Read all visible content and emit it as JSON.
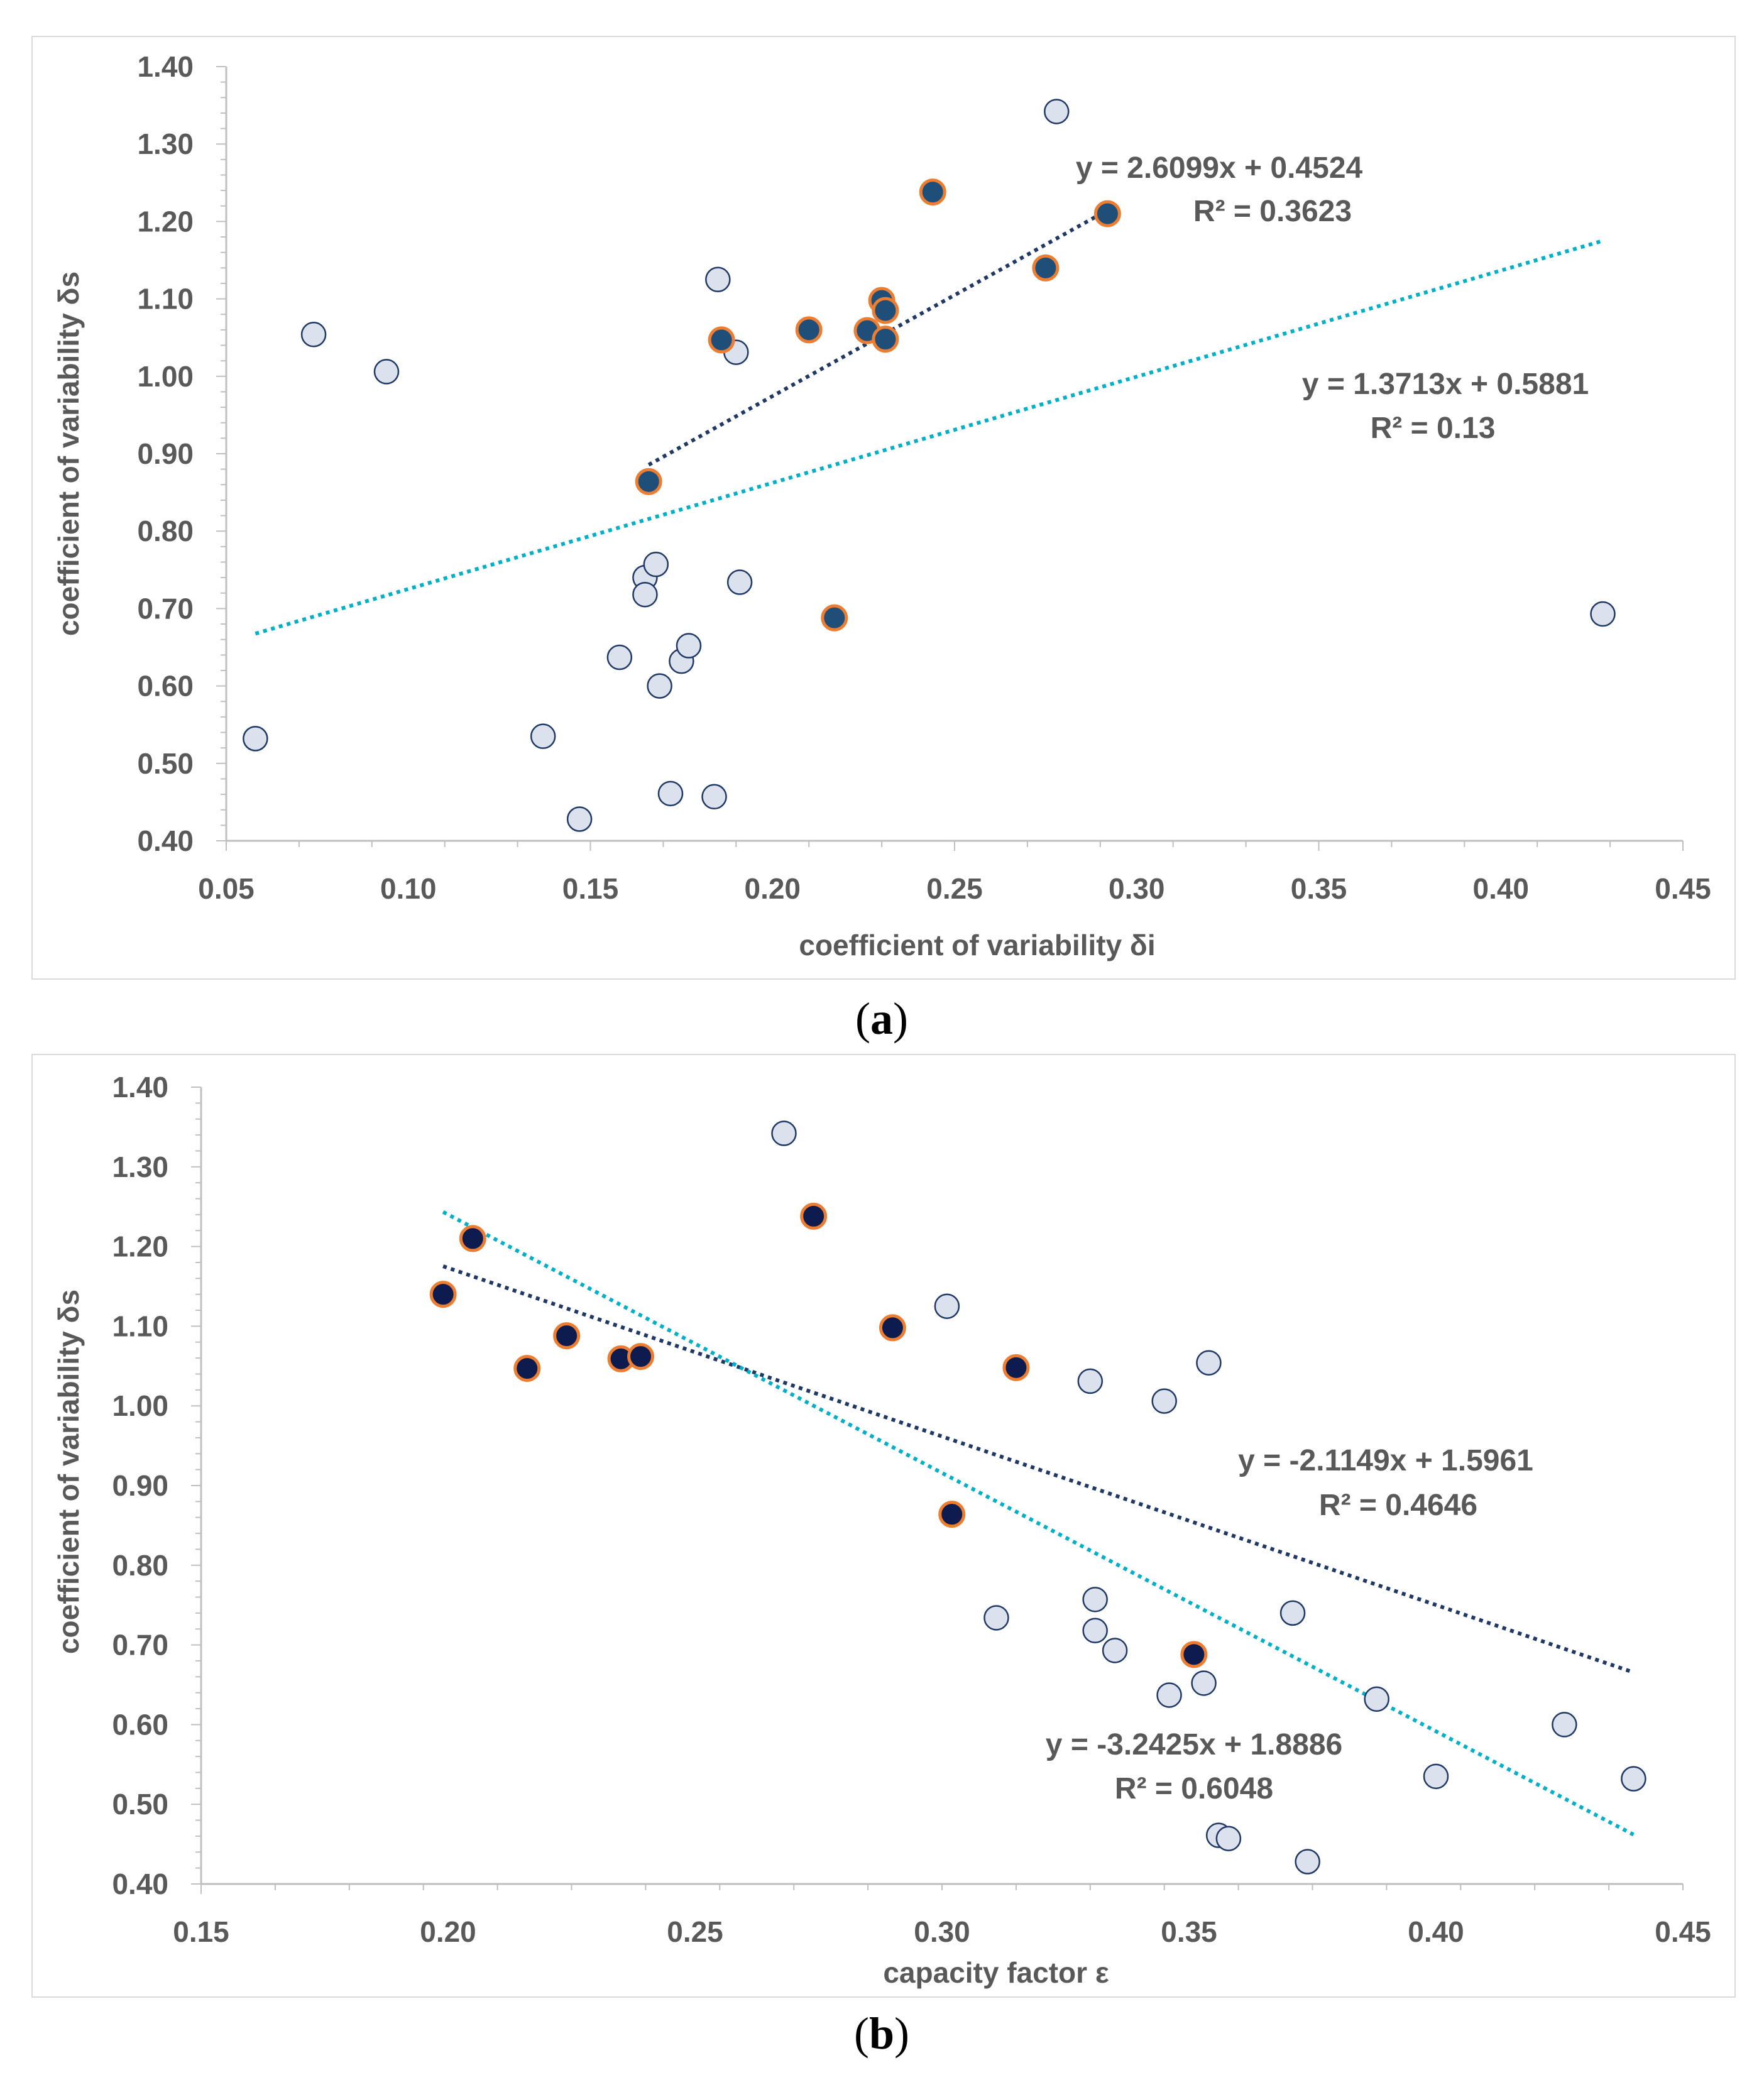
{
  "chart_data": [
    {
      "panel": "a",
      "type": "scatter",
      "caption_open": "(",
      "caption_letter": "a",
      "caption_close": ")",
      "xlabel": "coefficient of variability δi",
      "ylabel": "coefficient of variability δs",
      "xlim": [
        0.05,
        0.45
      ],
      "ylim": [
        0.4,
        1.4
      ],
      "x_ticks": [
        "0.05",
        "0.10",
        "0.15",
        "0.20",
        "0.25",
        "0.30",
        "0.35",
        "0.40",
        "0.45"
      ],
      "y_ticks": [
        "1.40",
        "1.30",
        "1.20",
        "1.10",
        "1.00",
        "0.90",
        "0.80",
        "0.70",
        "0.60",
        "0.50",
        "0.40"
      ],
      "series": [
        {
          "name": "highlighted",
          "fill": "#1f4e79",
          "stroke": "#ed7d31",
          "points": [
            [
              0.166,
              0.864
            ],
            [
              0.186,
              1.047
            ],
            [
              0.21,
              1.06
            ],
            [
              0.217,
              0.688
            ],
            [
              0.226,
              1.059
            ],
            [
              0.23,
              1.098
            ],
            [
              0.231,
              1.085
            ],
            [
              0.231,
              1.048
            ],
            [
              0.244,
              1.238
            ],
            [
              0.275,
              1.14
            ],
            [
              0.292,
              1.21
            ]
          ]
        },
        {
          "name": "other",
          "fill": "#dbe2ee",
          "stroke": "#1f3864",
          "points": [
            [
              0.058,
              0.532
            ],
            [
              0.074,
              1.054
            ],
            [
              0.094,
              1.006
            ],
            [
              0.137,
              0.535
            ],
            [
              0.147,
              0.428
            ],
            [
              0.158,
              0.637
            ],
            [
              0.165,
              0.74
            ],
            [
              0.165,
              0.718
            ],
            [
              0.168,
              0.757
            ],
            [
              0.169,
              0.6
            ],
            [
              0.172,
              0.461
            ],
            [
              0.175,
              0.632
            ],
            [
              0.177,
              0.652
            ],
            [
              0.184,
              0.457
            ],
            [
              0.185,
              1.125
            ],
            [
              0.19,
              1.031
            ],
            [
              0.191,
              0.734
            ],
            [
              0.278,
              1.342
            ],
            [
              0.428,
              0.693
            ]
          ]
        }
      ],
      "trendlines": [
        {
          "name": "highlighted-fit",
          "color": "#1f3864",
          "slope": 2.6099,
          "intercept": 0.4524,
          "x_range": [
            0.166,
            0.292
          ],
          "equation": "y = 2.6099x + 0.4524",
          "r2": "R² = 0.3623"
        },
        {
          "name": "all-fit",
          "color": "#00b0c8",
          "slope": 1.3713,
          "intercept": 0.5881,
          "x_range": [
            0.058,
            0.428
          ],
          "equation": "y = 1.3713x + 0.5881",
          "r2": "R² = 0.13"
        }
      ]
    },
    {
      "panel": "b",
      "type": "scatter",
      "caption_open": "(",
      "caption_letter": "b",
      "caption_close": ")",
      "xlabel": "capacity factor ε",
      "ylabel": "coefficient of variability δs",
      "xlim": [
        0.15,
        0.45
      ],
      "ylim": [
        0.4,
        1.4
      ],
      "x_ticks": [
        "0.15",
        "0.20",
        "0.25",
        "0.30",
        "0.35",
        "0.40",
        "0.45"
      ],
      "y_ticks": [
        "1.40",
        "1.30",
        "1.20",
        "1.10",
        "1.00",
        "0.90",
        "0.80",
        "0.70",
        "0.60",
        "0.50",
        "0.40"
      ],
      "series": [
        {
          "name": "highlighted",
          "fill": "#0d1b4f",
          "stroke": "#ed7d31",
          "points": [
            [
              0.199,
              1.14
            ],
            [
              0.205,
              1.21
            ],
            [
              0.216,
              1.047
            ],
            [
              0.224,
              1.088
            ],
            [
              0.235,
              1.059
            ],
            [
              0.239,
              1.062
            ],
            [
              0.274,
              1.238
            ],
            [
              0.29,
              1.098
            ],
            [
              0.302,
              0.864
            ],
            [
              0.315,
              1.048
            ],
            [
              0.351,
              0.688
            ]
          ]
        },
        {
          "name": "other",
          "fill": "#dbe2ee",
          "stroke": "#1f3864",
          "points": [
            [
              0.268,
              1.342
            ],
            [
              0.301,
              1.125
            ],
            [
              0.311,
              0.734
            ],
            [
              0.33,
              1.031
            ],
            [
              0.331,
              0.757
            ],
            [
              0.331,
              0.718
            ],
            [
              0.335,
              0.693
            ],
            [
              0.345,
              1.006
            ],
            [
              0.346,
              0.637
            ],
            [
              0.353,
              0.652
            ],
            [
              0.354,
              1.054
            ],
            [
              0.356,
              0.461
            ],
            [
              0.358,
              0.457
            ],
            [
              0.371,
              0.74
            ],
            [
              0.374,
              0.428
            ],
            [
              0.388,
              0.632
            ],
            [
              0.4,
              0.535
            ],
            [
              0.426,
              0.6
            ],
            [
              0.44,
              0.532
            ]
          ]
        }
      ],
      "trendlines": [
        {
          "name": "highlighted-fit",
          "color": "#1f3864",
          "slope": -2.1149,
          "intercept": 1.5961,
          "x_range": [
            0.199,
            0.44
          ],
          "equation": "y = -2.1149x + 1.5961",
          "r2": "R² = 0.4646"
        },
        {
          "name": "all-fit",
          "color": "#00b0c8",
          "slope": -3.2425,
          "intercept": 1.8886,
          "x_range": [
            0.199,
            0.44
          ],
          "equation": "y = -3.2425x + 1.8886",
          "r2": "R² = 0.6048"
        }
      ]
    }
  ]
}
